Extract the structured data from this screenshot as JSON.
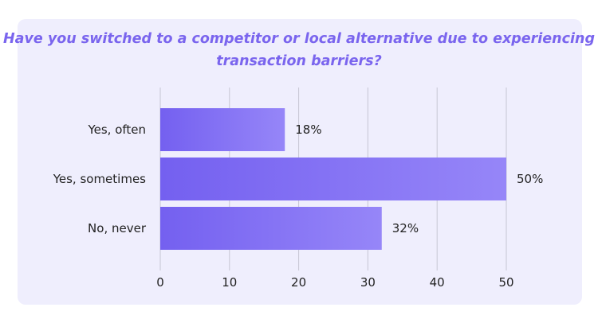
{
  "chart_data": {
    "type": "bar",
    "orientation": "horizontal",
    "title": "Have you switched to a competitor or local alternative due to experiencing transaction barriers?",
    "categories": [
      "Yes, often",
      "Yes, sometimes",
      "No, never"
    ],
    "values": [
      18,
      50,
      32
    ],
    "value_labels": [
      "18%",
      "50%",
      "32%"
    ],
    "xlim": [
      0,
      50
    ],
    "xticks": [
      0,
      10,
      20,
      30,
      40,
      50
    ],
    "xlabel": "",
    "ylabel": "",
    "grid": true,
    "legend": false,
    "colors": {
      "bar_start": "#7460f0",
      "bar_end": "#9686f8",
      "title": "#7a65ee",
      "background": "#efeefd",
      "grid": "#c6c5d3"
    }
  }
}
